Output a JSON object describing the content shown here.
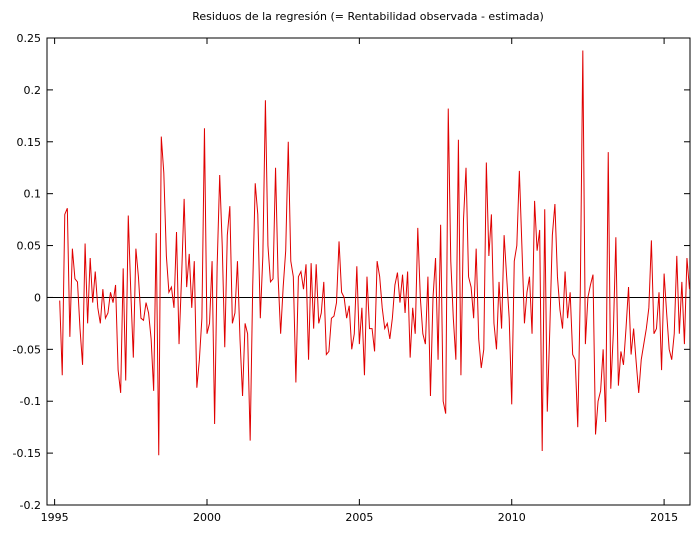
{
  "chart_data": {
    "type": "line",
    "title": "Residuos de la regresión (= Rentabilidad observada - estimada)",
    "xlim": [
      1994.75,
      2015.85
    ],
    "ylim": [
      -0.2,
      0.25
    ],
    "xticks": [
      1995,
      2000,
      2005,
      2010,
      2015
    ],
    "yticks": [
      -0.2,
      -0.15,
      -0.1,
      -0.05,
      0,
      0.05,
      0.1,
      0.15,
      0.2,
      0.25
    ],
    "zero_line": true,
    "series": [
      {
        "color": "#e00000",
        "x": [
          1995.167,
          1995.25,
          1995.333,
          1995.417,
          1995.5,
          1995.583,
          1995.667,
          1995.75,
          1995.833,
          1995.917,
          1996,
          1996.083,
          1996.167,
          1996.25,
          1996.333,
          1996.417,
          1996.5,
          1996.583,
          1996.667,
          1996.75,
          1996.833,
          1996.917,
          1997,
          1997.083,
          1997.167,
          1997.25,
          1997.333,
          1997.417,
          1997.5,
          1997.583,
          1997.667,
          1997.75,
          1997.833,
          1997.917,
          1998,
          1998.083,
          1998.167,
          1998.25,
          1998.333,
          1998.417,
          1998.5,
          1998.583,
          1998.667,
          1998.75,
          1998.833,
          1998.917,
          1999,
          1999.083,
          1999.167,
          1999.25,
          1999.333,
          1999.417,
          1999.5,
          1999.583,
          1999.667,
          1999.75,
          1999.833,
          1999.917,
          2000,
          2000.083,
          2000.167,
          2000.25,
          2000.333,
          2000.417,
          2000.5,
          2000.583,
          2000.667,
          2000.75,
          2000.833,
          2000.917,
          2001,
          2001.083,
          2001.167,
          2001.25,
          2001.333,
          2001.417,
          2001.5,
          2001.583,
          2001.667,
          2001.75,
          2001.833,
          2001.917,
          2002,
          2002.083,
          2002.167,
          2002.25,
          2002.333,
          2002.417,
          2002.5,
          2002.583,
          2002.667,
          2002.75,
          2002.833,
          2002.917,
          2003,
          2003.083,
          2003.167,
          2003.25,
          2003.333,
          2003.417,
          2003.5,
          2003.583,
          2003.667,
          2003.75,
          2003.833,
          2003.917,
          2004,
          2004.083,
          2004.167,
          2004.25,
          2004.333,
          2004.417,
          2004.5,
          2004.583,
          2004.667,
          2004.75,
          2004.833,
          2004.917,
          2005,
          2005.083,
          2005.167,
          2005.25,
          2005.333,
          2005.417,
          2005.5,
          2005.583,
          2005.667,
          2005.75,
          2005.833,
          2005.917,
          2006,
          2006.083,
          2006.167,
          2006.25,
          2006.333,
          2006.417,
          2006.5,
          2006.583,
          2006.667,
          2006.75,
          2006.833,
          2006.917,
          2007,
          2007.083,
          2007.167,
          2007.25,
          2007.333,
          2007.417,
          2007.5,
          2007.583,
          2007.667,
          2007.75,
          2007.833,
          2007.917,
          2008,
          2008.083,
          2008.167,
          2008.25,
          2008.333,
          2008.417,
          2008.5,
          2008.583,
          2008.667,
          2008.75,
          2008.833,
          2008.917,
          2009,
          2009.083,
          2009.167,
          2009.25,
          2009.333,
          2009.417,
          2009.5,
          2009.583,
          2009.667,
          2009.75,
          2009.833,
          2009.917,
          2010,
          2010.083,
          2010.167,
          2010.25,
          2010.333,
          2010.417,
          2010.5,
          2010.583,
          2010.667,
          2010.75,
          2010.833,
          2010.917,
          2011,
          2011.083,
          2011.167,
          2011.25,
          2011.333,
          2011.417,
          2011.5,
          2011.583,
          2011.667,
          2011.75,
          2011.833,
          2011.917,
          2012,
          2012.083,
          2012.167,
          2012.25,
          2012.333,
          2012.417,
          2012.5,
          2012.583,
          2012.667,
          2012.75,
          2012.833,
          2012.917,
          2013,
          2013.083,
          2013.167,
          2013.25,
          2013.333,
          2013.417,
          2013.5,
          2013.583,
          2013.667,
          2013.75,
          2013.833,
          2013.917,
          2014,
          2014.083,
          2014.167,
          2014.25,
          2014.333,
          2014.417,
          2014.5,
          2014.583,
          2014.667,
          2014.75,
          2014.833,
          2014.917,
          2015,
          2015.083,
          2015.167,
          2015.25,
          2015.333,
          2015.417,
          2015.5,
          2015.583,
          2015.667,
          2015.75,
          2015.833
        ],
        "values": [
          -0.003,
          -0.075,
          0.08,
          0.086,
          -0.038,
          0.047,
          0.018,
          0.015,
          -0.03,
          -0.065,
          0.052,
          -0.025,
          0.038,
          -0.005,
          0.025,
          -0.01,
          -0.025,
          0.008,
          -0.02,
          -0.015,
          0.005,
          -0.005,
          0.012,
          -0.07,
          -0.092,
          0.028,
          -0.08,
          0.079,
          0.005,
          -0.058,
          0.047,
          0.02,
          -0.02,
          -0.022,
          -0.005,
          -0.015,
          -0.04,
          -0.09,
          0.062,
          -0.152,
          0.155,
          0.12,
          0.04,
          0.005,
          0.01,
          -0.01,
          0.063,
          -0.045,
          0.02,
          0.095,
          0.01,
          0.042,
          -0.01,
          0.035,
          -0.087,
          -0.06,
          -0.02,
          0.163,
          -0.035,
          -0.025,
          0.035,
          -0.122,
          0.03,
          0.118,
          0.05,
          -0.048,
          0.06,
          0.088,
          -0.025,
          -0.015,
          0.035,
          -0.04,
          -0.095,
          -0.025,
          -0.035,
          -0.138,
          0.01,
          0.11,
          0.08,
          -0.02,
          0.04,
          0.19,
          0.05,
          0.015,
          0.018,
          0.125,
          0.02,
          -0.035,
          0.01,
          0.045,
          0.15,
          0.035,
          0.02,
          -0.082,
          0.02,
          0.025,
          0.008,
          0.032,
          -0.06,
          0.033,
          -0.03,
          0.032,
          -0.025,
          -0.015,
          0.015,
          -0.055,
          -0.052,
          -0.02,
          -0.018,
          -0.005,
          0.054,
          0.005,
          0,
          -0.02,
          -0.008,
          -0.05,
          -0.035,
          0.03,
          -0.045,
          -0.01,
          -0.075,
          0.02,
          -0.03,
          -0.03,
          -0.052,
          0.035,
          0.02,
          -0.01,
          -0.03,
          -0.025,
          -0.04,
          -0.02,
          0.012,
          0.024,
          -0.005,
          0.022,
          -0.015,
          0.025,
          -0.058,
          -0.01,
          -0.035,
          0.067,
          0,
          -0.035,
          -0.045,
          0.02,
          -0.095,
          0,
          0.038,
          -0.06,
          0.07,
          -0.1,
          -0.112,
          0.182,
          0.035,
          -0.02,
          -0.06,
          0.152,
          -0.075,
          0.075,
          0.125,
          0.02,
          0.01,
          -0.02,
          0.047,
          -0.04,
          -0.068,
          -0.05,
          0.13,
          0.04,
          0.08,
          -0.025,
          -0.05,
          0.015,
          -0.03,
          0.06,
          0.02,
          -0.02,
          -0.103,
          0.035,
          0.05,
          0.122,
          0.05,
          -0.025,
          0.005,
          0.02,
          -0.035,
          0.093,
          0.045,
          0.065,
          -0.148,
          0.085,
          -0.11,
          -0.03,
          0.06,
          0.09,
          0.02,
          -0.012,
          -0.03,
          0.025,
          -0.02,
          0.005,
          -0.055,
          -0.06,
          -0.125,
          0.005,
          0.238,
          -0.045,
          0,
          0.012,
          0.022,
          -0.132,
          -0.1,
          -0.09,
          -0.05,
          -0.12,
          0.14,
          -0.088,
          -0.035,
          0.058,
          -0.085,
          -0.052,
          -0.065,
          -0.03,
          0.01,
          -0.055,
          -0.03,
          -0.062,
          -0.092,
          -0.06,
          -0.045,
          -0.03,
          -0.01,
          0.055,
          -0.035,
          -0.03,
          0.005,
          -0.07,
          0.023,
          -0.015,
          -0.05,
          -0.06,
          -0.035,
          0.04,
          -0.035,
          0.015,
          -0.045,
          0.038,
          0.008
        ]
      }
    ]
  }
}
